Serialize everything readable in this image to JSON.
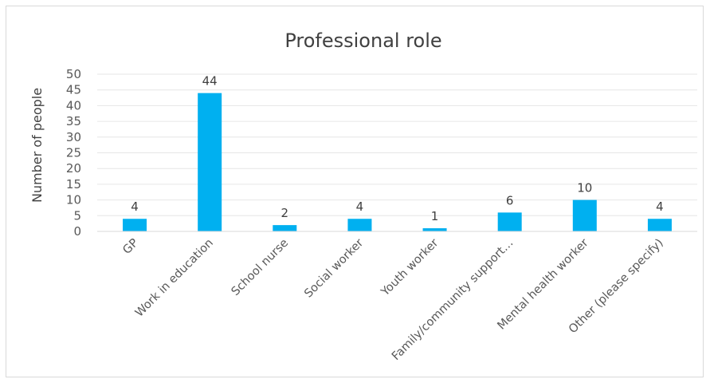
{
  "chart_data": {
    "type": "bar",
    "title": "Professional role",
    "xlabel": "",
    "ylabel": "Number of people",
    "ylim": [
      0,
      50
    ],
    "yticks": [
      0,
      5,
      10,
      15,
      20,
      25,
      30,
      35,
      40,
      45,
      50
    ],
    "grid": true,
    "legend": "none",
    "bar_color": "#00b0f0",
    "categories": [
      "GP",
      "Work in education",
      "School nurse",
      "Social worker",
      "Youth worker",
      "Family/community support…",
      "Mental health worker",
      "Other (please specify)"
    ],
    "values": [
      4,
      44,
      2,
      4,
      1,
      6,
      10,
      4
    ]
  }
}
